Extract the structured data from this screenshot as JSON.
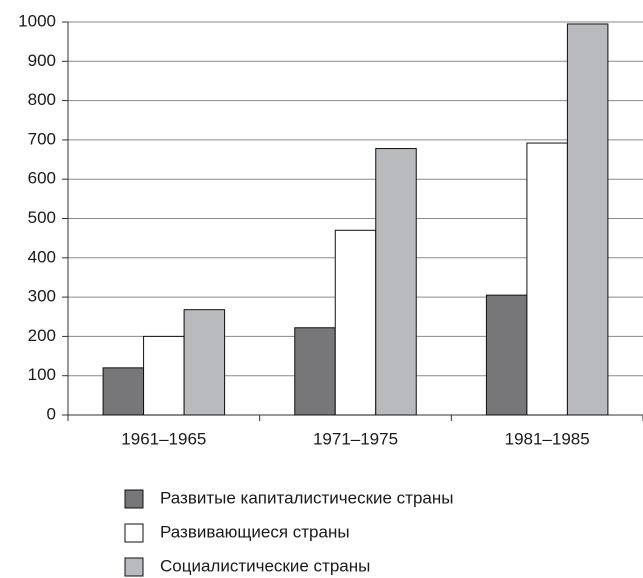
{
  "chart_data": {
    "type": "bar",
    "categories": [
      "1961–1965",
      "1971–1975",
      "1981–1985"
    ],
    "series": [
      {
        "name": "Развитые капиталистические страны",
        "color": "#77777a",
        "values": [
          120,
          222,
          305
        ]
      },
      {
        "name": "Развивающиеся страны",
        "color": "#ffffff",
        "values": [
          200,
          470,
          692
        ]
      },
      {
        "name": "Социалистические страны",
        "color": "#b9babd",
        "values": [
          268,
          678,
          995
        ]
      }
    ],
    "ylim": [
      0,
      1000
    ],
    "yticks": [
      0,
      100,
      200,
      300,
      400,
      500,
      600,
      700,
      800,
      900,
      1000
    ],
    "grid": true,
    "legend": "bottom"
  }
}
